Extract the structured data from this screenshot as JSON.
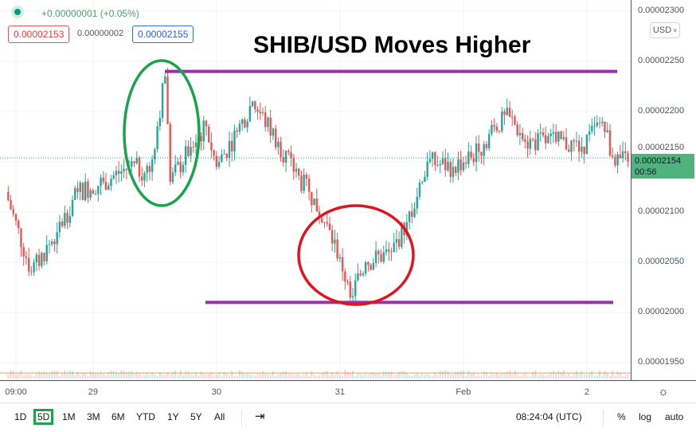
{
  "header": {
    "change": "+0.00000001 (+0.05%)",
    "bid": "0.00002153",
    "spread": "0.00000002",
    "ask": "0.00002155",
    "currency": "USD"
  },
  "price_tag": {
    "price": "0.00002154",
    "countdown": "00:56"
  },
  "colors": {
    "up": "#26a69a",
    "down": "#ef5350",
    "price_tag": "#4fb37e",
    "resistance_line": "#9b30a8",
    "green_circle": "#1aa34a",
    "red_circle": "#e0141e"
  },
  "chart_data": {
    "type": "candlestick",
    "title": "SHIB/USD Moves Higher",
    "ylim": [
      1.93e-05,
      2.32e-05
    ],
    "y_ticks": [
      "0.00002300",
      "0.00002250",
      "0.00002200",
      "0.00002150",
      "0.00002100",
      "0.00002050",
      "0.00002000",
      "0.00001950"
    ],
    "y_tick_values": [
      2.3e-05,
      2.25e-05,
      2.2e-05,
      2.15e-05,
      2.1e-05,
      2.05e-05,
      2e-05,
      1.95e-05
    ],
    "x_ticks": [
      {
        "label": "09:00",
        "time": "2022-01-28T09:00"
      },
      {
        "label": "29",
        "time": "2022-01-29T00:00"
      },
      {
        "label": "30",
        "time": "2022-01-30T00:00"
      },
      {
        "label": "31",
        "time": "2022-01-31T00:00"
      },
      {
        "label": "Feb",
        "time": "2022-02-01T00:00"
      },
      {
        "label": "2",
        "time": "2022-02-02T00:00"
      }
    ],
    "series": [
      [
        "2022-01-28T07:00",
        2.12e-05
      ],
      [
        "2022-01-28T12:00",
        2.04e-05
      ],
      [
        "2022-01-28T17:00",
        2.08e-05
      ],
      [
        "2022-01-28T21:00",
        2.12e-05
      ],
      [
        "2022-01-29T02:00",
        2.13e-05
      ],
      [
        "2022-01-29T07:00",
        2.145e-05
      ],
      [
        "2022-01-29T11:00",
        2.14e-05
      ],
      [
        "2022-01-29T14:00",
        2.235e-05
      ],
      [
        "2022-01-29T15:00",
        2.13e-05
      ],
      [
        "2022-01-29T19:00",
        2.165e-05
      ],
      [
        "2022-01-29T22:00",
        2.185e-05
      ],
      [
        "2022-01-30T00:00",
        2.145e-05
      ],
      [
        "2022-01-30T04:00",
        2.18e-05
      ],
      [
        "2022-01-30T07:00",
        2.21e-05
      ],
      [
        "2022-01-30T12:00",
        2.17e-05
      ],
      [
        "2022-01-30T15:00",
        2.14e-05
      ],
      [
        "2022-01-30T18:00",
        2.12e-05
      ],
      [
        "2022-01-30T21:00",
        2.09e-05
      ],
      [
        "2022-01-31T00:00",
        2.055e-05
      ],
      [
        "2022-01-31T02:00",
        2.015e-05
      ],
      [
        "2022-01-31T05:00",
        2.05e-05
      ],
      [
        "2022-01-31T10:00",
        2.06e-05
      ],
      [
        "2022-01-31T13:00",
        2.09e-05
      ],
      [
        "2022-01-31T16:00",
        2.13e-05
      ],
      [
        "2022-01-31T17:00",
        2.15e-05
      ],
      [
        "2022-01-31T22:00",
        2.145e-05
      ],
      [
        "2022-02-01T03:00",
        2.16e-05
      ],
      [
        "2022-02-01T06:00",
        2.185e-05
      ],
      [
        "2022-02-01T09:00",
        2.195e-05
      ],
      [
        "2022-02-01T12:00",
        2.17e-05
      ],
      [
        "2022-02-01T18:00",
        2.17e-05
      ],
      [
        "2022-02-01T23:00",
        2.165e-05
      ],
      [
        "2022-02-02T03:00",
        2.19e-05
      ],
      [
        "2022-02-02T05:00",
        2.155e-05
      ],
      [
        "2022-02-02T08:00",
        2.15e-05
      ]
    ],
    "last_price": 2.154e-05,
    "resistance": 2.24e-05,
    "support": 2.01e-05,
    "grid": true
  },
  "toolbar": {
    "ranges": [
      "1D",
      "5D",
      "1M",
      "3M",
      "6M",
      "YTD",
      "1Y",
      "5Y",
      "All"
    ],
    "active_range": "5D",
    "time": "08:24:04 (UTC)",
    "percent": "%",
    "log": "log",
    "auto": "auto"
  }
}
